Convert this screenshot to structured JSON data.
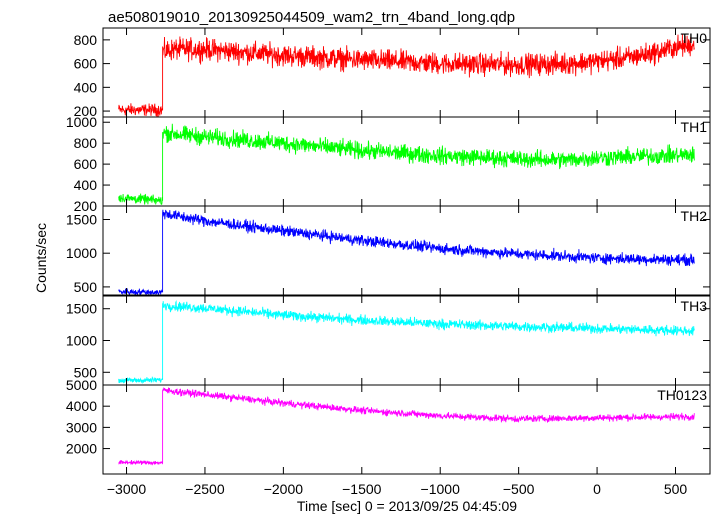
{
  "chart_data": {
    "type": "line",
    "title": "ae508019010_20130925044509_wam2_trn_4band_long.qdp",
    "xlabel": "Time [sec] 0 = 2013/09/25 04:45:09",
    "ylabel": "Counts/sec",
    "xlim": [
      -3150,
      720
    ],
    "x_ticks": [
      -3000,
      -2500,
      -2000,
      -1500,
      -1000,
      -500,
      0,
      500
    ],
    "onset_time": -2770,
    "panels": [
      {
        "name": "TH0",
        "color": "#ff0000",
        "ylim": [
          150,
          900
        ],
        "y_ticks": [
          200,
          400,
          600,
          800
        ],
        "profile": {
          "x": [
            -3050,
            -2771,
            -2770,
            -2700,
            -2500,
            -2000,
            -1500,
            -1000,
            -500,
            -200,
            0,
            200,
            400,
            500,
            620
          ],
          "y": [
            210,
            210,
            700,
            720,
            720,
            670,
            630,
            600,
            590,
            600,
            620,
            650,
            700,
            740,
            760
          ]
        },
        "noise": 45
      },
      {
        "name": "TH1",
        "color": "#00ff00",
        "ylim": [
          200,
          1050
        ],
        "y_ticks": [
          200,
          400,
          600,
          800,
          1000
        ],
        "profile": {
          "x": [
            -3050,
            -2771,
            -2770,
            -2700,
            -2500,
            -2000,
            -1500,
            -1000,
            -500,
            -200,
            0,
            200,
            400,
            620
          ],
          "y": [
            280,
            250,
            900,
            890,
            860,
            800,
            730,
            680,
            650,
            640,
            660,
            670,
            680,
            690
          ]
        },
        "noise": 40
      },
      {
        "name": "TH2",
        "color": "#0000ff",
        "ylim": [
          380,
          1700
        ],
        "y_ticks": [
          500,
          1000,
          1500
        ],
        "profile": {
          "x": [
            -3050,
            -2771,
            -2770,
            -2700,
            -2500,
            -2000,
            -1500,
            -1000,
            -500,
            0,
            300,
            620
          ],
          "y": [
            430,
            420,
            1600,
            1560,
            1480,
            1330,
            1190,
            1070,
            990,
            930,
            910,
            900
          ]
        },
        "noise": 40
      },
      {
        "name": "TH3",
        "color": "#00ffff",
        "ylim": [
          300,
          1700
        ],
        "y_ticks": [
          500,
          1000,
          1500
        ],
        "profile": {
          "x": [
            -3050,
            -2771,
            -2770,
            -2700,
            -2500,
            -2000,
            -1500,
            -1000,
            -500,
            0,
            300,
            620
          ],
          "y": [
            370,
            380,
            1560,
            1540,
            1510,
            1400,
            1320,
            1260,
            1220,
            1190,
            1170,
            1150
          ]
        },
        "noise": 38
      },
      {
        "name": "TH0123",
        "color": "#ff00ff",
        "ylim": [
          800,
          5000
        ],
        "y_ticks": [
          2000,
          3000,
          4000,
          5000
        ],
        "profile": {
          "x": [
            -3050,
            -2771,
            -2770,
            -2700,
            -2500,
            -2000,
            -1500,
            -1000,
            -500,
            0,
            300,
            620
          ],
          "y": [
            1350,
            1330,
            4750,
            4700,
            4550,
            4150,
            3800,
            3550,
            3400,
            3450,
            3480,
            3520
          ]
        },
        "noise": 80
      }
    ]
  }
}
